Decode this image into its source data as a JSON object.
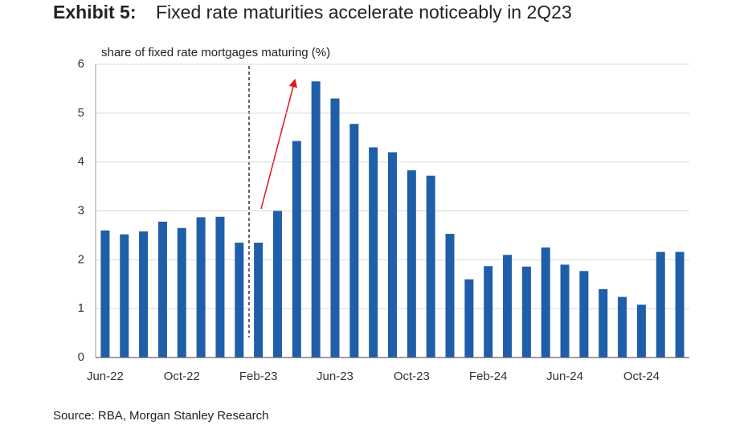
{
  "chart_data": {
    "type": "bar",
    "exhibit": "Exhibit 5:",
    "title": "Fixed rate maturities accelerate noticeably in 2Q23",
    "y_label": "share of fixed rate mortgages maturing (%)",
    "source": "Source: RBA, Morgan Stanley Research",
    "categories": [
      "Jun-22",
      null,
      null,
      null,
      "Oct-22",
      null,
      null,
      null,
      "Feb-23",
      null,
      null,
      null,
      "Jun-23",
      null,
      null,
      null,
      "Oct-23",
      null,
      null,
      null,
      "Feb-24",
      null,
      null,
      null,
      "Jun-24",
      null,
      null,
      null,
      "Oct-24",
      null,
      null
    ],
    "values": [
      2.6,
      2.52,
      2.58,
      2.78,
      2.65,
      2.87,
      2.88,
      2.35,
      2.35,
      3.0,
      4.43,
      5.65,
      5.3,
      4.78,
      4.3,
      4.2,
      3.83,
      3.72,
      2.53,
      1.6,
      1.87,
      2.1,
      1.86,
      2.25,
      1.9,
      1.77,
      1.4,
      1.24,
      1.08,
      2.16,
      2.16
    ],
    "color": "#1f5ea8",
    "ylim": [
      0,
      6
    ],
    "yticks": [
      0,
      1,
      2,
      3,
      4,
      5,
      6
    ],
    "grid": true
  }
}
